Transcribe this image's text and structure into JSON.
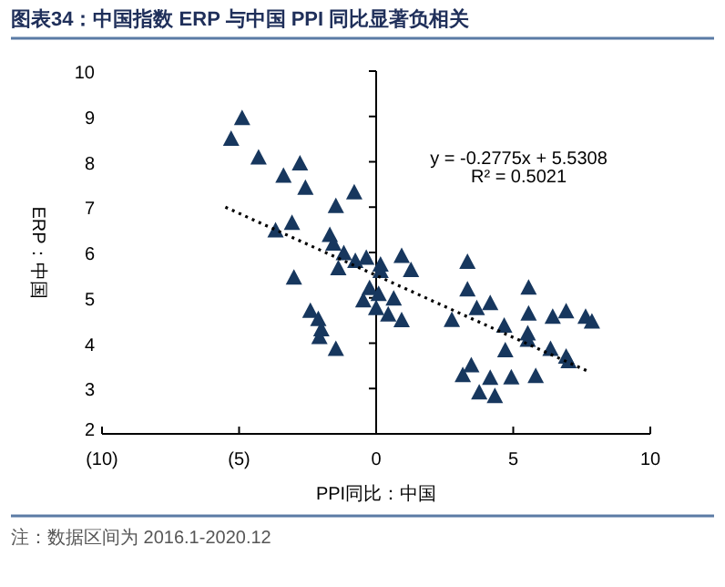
{
  "chart_data": {
    "type": "scatter",
    "title": "图表34：中国指数 ERP 与中国 PPI 同比显著负相关",
    "xlabel": "PPI同比：中国",
    "ylabel": "ERP：中国",
    "annotations": [
      "y = -0.2775x + 5.5308",
      "R² = 0.5021",
      "注：数据区间为 2016.1-2020.12"
    ],
    "xlim": [
      -10,
      10
    ],
    "ylim": [
      2,
      10
    ],
    "xticks": [
      {
        "value": -10,
        "label": "(10)"
      },
      {
        "value": -5,
        "label": "(5)"
      },
      0,
      5,
      10
    ],
    "yticks": [
      2,
      3,
      4,
      5,
      6,
      7,
      8,
      9,
      10
    ],
    "series": [
      {
        "color": "#17375e",
        "marker": "triangle",
        "x": [
          -5.29,
          -4.89,
          -4.29,
          -3.38,
          -2.78,
          -2.58,
          -0.8,
          -1.47,
          -3.67,
          -3.07,
          -1.69,
          -1.56,
          -3.0,
          -1.18,
          -1.38,
          -0.76,
          -0.36,
          0.16,
          0.16,
          0.93,
          1.27,
          -0.24,
          -0.47,
          0.09,
          0.64,
          0,
          0.44,
          0.93,
          -2.4,
          -2.11,
          -2.0,
          -2.07,
          -1.47,
          2.76,
          3.33,
          3.33,
          3.67,
          4.16,
          4.67,
          4.71,
          3.16,
          3.47,
          3.76,
          4.16,
          4.33,
          4.93,
          5.56,
          5.56,
          5.53,
          5.53,
          5.82,
          6.36,
          6.44,
          6.93,
          6.93,
          7.02,
          7.64,
          7.87
        ],
        "values": [
          8.49,
          8.95,
          8.08,
          7.68,
          7.95,
          7.41,
          7.31,
          7.01,
          6.47,
          6.64,
          6.37,
          6.18,
          5.43,
          5.97,
          5.64,
          5.8,
          5.87,
          5.72,
          5.58,
          5.91,
          5.6,
          5.2,
          4.93,
          5.07,
          4.97,
          4.76,
          4.62,
          4.49,
          4.7,
          4.52,
          4.29,
          4.12,
          3.86,
          4.5,
          5.78,
          5.17,
          4.76,
          4.87,
          4.37,
          3.83,
          3.28,
          3.5,
          2.9,
          3.22,
          2.82,
          3.23,
          5.21,
          4.64,
          4.2,
          4.06,
          3.26,
          3.86,
          4.57,
          4.69,
          3.69,
          3.59,
          4.57,
          4.46
        ]
      },
      {
        "type": "line",
        "color": "#000000",
        "line_style": "dotted",
        "x": [
          -5.5,
          7.8
        ],
        "values": [
          7.0,
          3.36
        ]
      }
    ]
  }
}
